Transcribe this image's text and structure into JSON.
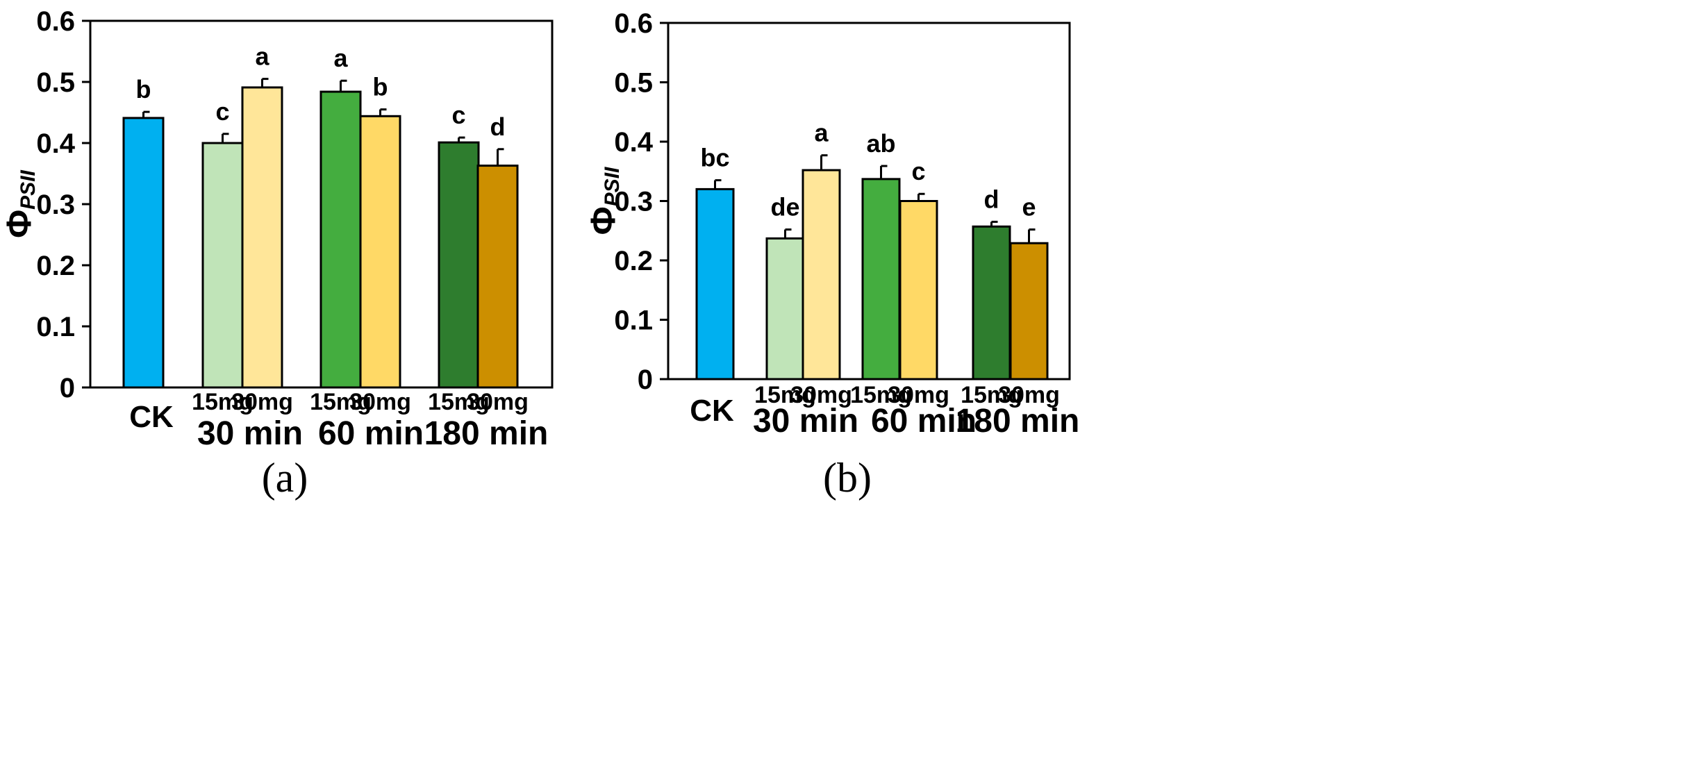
{
  "chart_data": [
    {
      "type": "bar",
      "panel_label": "(a)",
      "ylabel": {
        "symbol": "Φ",
        "subscript": "PSII"
      },
      "ylim": [
        0,
        0.6
      ],
      "yticks": [
        "0",
        "0.1",
        "0.2",
        "0.3",
        "0.4",
        "0.5",
        "0.6"
      ],
      "bars": [
        {
          "dose": "",
          "value": 0.441,
          "error": 0.01,
          "letter": "b",
          "color": "#00b0f0"
        },
        {
          "dose": "15mg",
          "value": 0.4,
          "error": 0.015,
          "letter": "c",
          "color": "#c0e4b8"
        },
        {
          "dose": "30mg",
          "value": 0.491,
          "error": 0.014,
          "letter": "a",
          "color": "#ffe699"
        },
        {
          "dose": "15mg",
          "value": 0.484,
          "error": 0.018,
          "letter": "a",
          "color": "#44ad3f"
        },
        {
          "dose": "30mg",
          "value": 0.444,
          "error": 0.011,
          "letter": "b",
          "color": "#ffd966"
        },
        {
          "dose": "15mg",
          "value": 0.401,
          "error": 0.008,
          "letter": "c",
          "color": "#2e7d2e"
        },
        {
          "dose": "30mg",
          "value": 0.363,
          "error": 0.027,
          "letter": "d",
          "color": "#cc8f00"
        }
      ],
      "groups": [
        "CK",
        "30 min",
        "60 min",
        "180 min"
      ]
    },
    {
      "type": "bar",
      "panel_label": "(b)",
      "ylabel": {
        "symbol": "Φ",
        "subscript": "PSII"
      },
      "ylim": [
        0,
        0.6
      ],
      "yticks": [
        "0",
        "0.1",
        "0.2",
        "0.3",
        "0.4",
        "0.5",
        "0.6"
      ],
      "bars": [
        {
          "dose": "",
          "value": 0.32,
          "error": 0.015,
          "letter": "bc",
          "color": "#00b0f0"
        },
        {
          "dose": "15mg",
          "value": 0.237,
          "error": 0.015,
          "letter": "de",
          "color": "#c0e4b8"
        },
        {
          "dose": "30mg",
          "value": 0.352,
          "error": 0.025,
          "letter": "a",
          "color": "#ffe699"
        },
        {
          "dose": "15mg",
          "value": 0.337,
          "error": 0.022,
          "letter": "ab",
          "color": "#44ad3f"
        },
        {
          "dose": "30mg",
          "value": 0.3,
          "error": 0.012,
          "letter": "c",
          "color": "#ffd966"
        },
        {
          "dose": "15mg",
          "value": 0.257,
          "error": 0.008,
          "letter": "d",
          "color": "#2e7d2e"
        },
        {
          "dose": "30mg",
          "value": 0.229,
          "error": 0.023,
          "letter": "e",
          "color": "#cc8f00"
        }
      ],
      "groups": [
        "CK",
        "30 min",
        "60 min",
        "180 min"
      ]
    }
  ]
}
